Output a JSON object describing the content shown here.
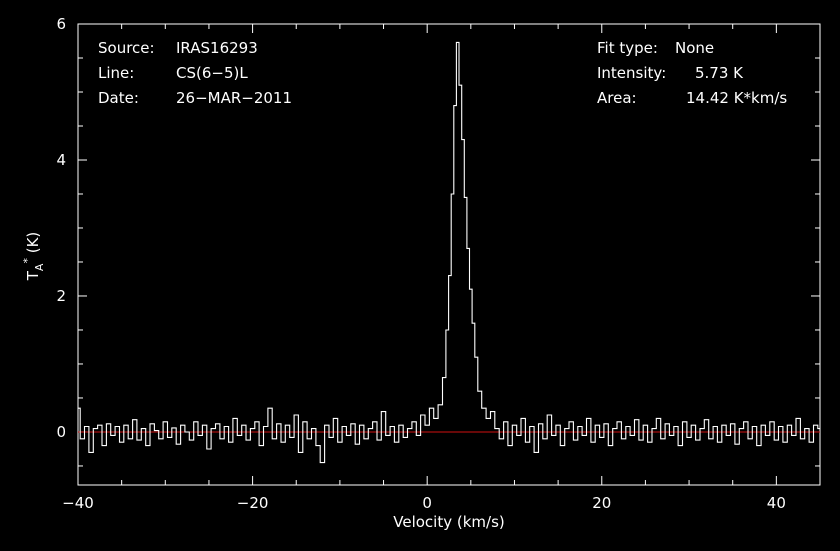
{
  "info": {
    "source_label": "Source:",
    "source_value": "IRAS16293",
    "line_label": "Line:",
    "line_value": "CS(6−5)L",
    "date_label": "Date:",
    "date_value": "26−MAR−2011",
    "fit_label": "Fit type:",
    "fit_value": "None",
    "intensity_label": "Intensity:",
    "intensity_value": "5.73 K",
    "area_label": "Area:",
    "area_value": "14.42 K*km/s"
  },
  "colors": {
    "background": "#000000",
    "foreground": "#ffffff",
    "baseline": "#d01010"
  },
  "chart_data": {
    "type": "line",
    "title": "",
    "xlabel": "Velocity (km/s)",
    "ylabel_main": "T",
    "ylabel_sub": "A",
    "ylabel_sup": "*",
    "ylabel_unit": " (K)",
    "xlim": [
      -40,
      45
    ],
    "ylim": [
      -0.78,
      6.0
    ],
    "xticks": [
      -40,
      -20,
      0,
      20,
      40
    ],
    "xtick_labels": [
      "−40",
      "−20",
      "0",
      "20",
      "40"
    ],
    "yticks": [
      0,
      2,
      4,
      6
    ],
    "ytick_labels": [
      "0",
      "2",
      "4",
      "6"
    ],
    "baseline": 0,
    "grid": false,
    "legend": "none",
    "series": [
      {
        "points": [
          [
            -40.0,
            0.35
          ],
          [
            -39.5,
            -0.1
          ],
          [
            -39.0,
            0.08
          ],
          [
            -38.5,
            -0.3
          ],
          [
            -38.0,
            0.05
          ],
          [
            -37.5,
            0.1
          ],
          [
            -37.0,
            -0.2
          ],
          [
            -36.5,
            0.12
          ],
          [
            -36.0,
            -0.05
          ],
          [
            -35.5,
            0.08
          ],
          [
            -35.0,
            -0.15
          ],
          [
            -34.5,
            0.1
          ],
          [
            -34.0,
            -0.1
          ],
          [
            -33.5,
            0.18
          ],
          [
            -33.0,
            -0.12
          ],
          [
            -32.5,
            0.05
          ],
          [
            -32.0,
            -0.2
          ],
          [
            -31.5,
            0.12
          ],
          [
            -31.0,
            0.02
          ],
          [
            -30.5,
            -0.1
          ],
          [
            -30.0,
            0.15
          ],
          [
            -29.5,
            -0.08
          ],
          [
            -29.0,
            0.06
          ],
          [
            -28.5,
            -0.18
          ],
          [
            -28.0,
            0.1
          ],
          [
            -27.5,
            0.0
          ],
          [
            -27.0,
            -0.12
          ],
          [
            -26.5,
            0.15
          ],
          [
            -26.0,
            -0.05
          ],
          [
            -25.5,
            0.1
          ],
          [
            -25.0,
            -0.25
          ],
          [
            -24.5,
            0.05
          ],
          [
            -24.0,
            0.12
          ],
          [
            -23.5,
            -0.1
          ],
          [
            -23.0,
            0.08
          ],
          [
            -22.5,
            -0.15
          ],
          [
            -22.0,
            0.2
          ],
          [
            -21.5,
            -0.05
          ],
          [
            -21.0,
            0.1
          ],
          [
            -20.5,
            -0.12
          ],
          [
            -20.0,
            0.05
          ],
          [
            -19.5,
            0.15
          ],
          [
            -19.0,
            -0.2
          ],
          [
            -18.5,
            0.08
          ],
          [
            -18.0,
            0.35
          ],
          [
            -17.5,
            -0.1
          ],
          [
            -17.0,
            0.12
          ],
          [
            -16.5,
            -0.15
          ],
          [
            -16.0,
            0.1
          ],
          [
            -15.5,
            -0.08
          ],
          [
            -15.0,
            0.25
          ],
          [
            -14.5,
            -0.3
          ],
          [
            -14.0,
            0.15
          ],
          [
            -13.5,
            -0.1
          ],
          [
            -13.0,
            0.05
          ],
          [
            -12.5,
            -0.2
          ],
          [
            -12.0,
            -0.45
          ],
          [
            -11.5,
            0.1
          ],
          [
            -11.0,
            -0.08
          ],
          [
            -10.5,
            0.2
          ],
          [
            -10.0,
            -0.15
          ],
          [
            -9.5,
            0.08
          ],
          [
            -9.0,
            -0.05
          ],
          [
            -8.5,
            0.12
          ],
          [
            -8.0,
            -0.18
          ],
          [
            -7.5,
            0.1
          ],
          [
            -7.0,
            -0.1
          ],
          [
            -6.5,
            0.05
          ],
          [
            -6.0,
            0.15
          ],
          [
            -5.5,
            -0.12
          ],
          [
            -5.0,
            0.3
          ],
          [
            -4.5,
            -0.05
          ],
          [
            -4.0,
            0.08
          ],
          [
            -3.5,
            -0.15
          ],
          [
            -3.0,
            0.1
          ],
          [
            -2.5,
            -0.08
          ],
          [
            -2.0,
            0.05
          ],
          [
            -1.5,
            0.15
          ],
          [
            -1.0,
            -0.05
          ],
          [
            -0.5,
            0.25
          ],
          [
            0.0,
            0.1
          ],
          [
            0.5,
            0.35
          ],
          [
            1.0,
            0.2
          ],
          [
            1.5,
            0.4
          ],
          [
            2.0,
            0.8
          ],
          [
            2.3,
            1.5
          ],
          [
            2.6,
            2.3
          ],
          [
            2.9,
            3.5
          ],
          [
            3.2,
            4.8
          ],
          [
            3.5,
            5.73
          ],
          [
            3.8,
            5.1
          ],
          [
            4.1,
            4.3
          ],
          [
            4.4,
            3.45
          ],
          [
            4.7,
            2.7
          ],
          [
            5.0,
            2.1
          ],
          [
            5.3,
            1.6
          ],
          [
            5.6,
            1.1
          ],
          [
            6.0,
            0.6
          ],
          [
            6.5,
            0.35
          ],
          [
            7.0,
            0.2
          ],
          [
            7.5,
            0.3
          ],
          [
            8.0,
            0.05
          ],
          [
            8.5,
            -0.1
          ],
          [
            9.0,
            0.15
          ],
          [
            9.5,
            -0.2
          ],
          [
            10.0,
            0.1
          ],
          [
            10.5,
            -0.05
          ],
          [
            11.0,
            0.2
          ],
          [
            11.5,
            -0.15
          ],
          [
            12.0,
            0.08
          ],
          [
            12.5,
            -0.3
          ],
          [
            13.0,
            0.12
          ],
          [
            13.5,
            -0.1
          ],
          [
            14.0,
            0.25
          ],
          [
            14.5,
            -0.05
          ],
          [
            15.0,
            0.1
          ],
          [
            15.5,
            -0.2
          ],
          [
            16.0,
            0.05
          ],
          [
            16.5,
            0.15
          ],
          [
            17.0,
            -0.12
          ],
          [
            17.5,
            0.08
          ],
          [
            18.0,
            -0.05
          ],
          [
            18.5,
            0.2
          ],
          [
            19.0,
            -0.15
          ],
          [
            19.5,
            0.1
          ],
          [
            20.0,
            -0.08
          ],
          [
            20.5,
            0.12
          ],
          [
            21.0,
            -0.2
          ],
          [
            21.5,
            0.05
          ],
          [
            22.0,
            0.15
          ],
          [
            22.5,
            -0.1
          ],
          [
            23.0,
            0.08
          ],
          [
            23.5,
            -0.05
          ],
          [
            24.0,
            0.18
          ],
          [
            24.5,
            -0.12
          ],
          [
            25.0,
            0.1
          ],
          [
            25.5,
            -0.15
          ],
          [
            26.0,
            0.05
          ],
          [
            26.5,
            0.2
          ],
          [
            27.0,
            -0.1
          ],
          [
            27.5,
            0.12
          ],
          [
            28.0,
            -0.05
          ],
          [
            28.5,
            0.08
          ],
          [
            29.0,
            -0.2
          ],
          [
            29.5,
            0.15
          ],
          [
            30.0,
            -0.08
          ],
          [
            30.5,
            0.1
          ],
          [
            31.0,
            -0.12
          ],
          [
            31.5,
            0.05
          ],
          [
            32.0,
            0.18
          ],
          [
            32.5,
            -0.1
          ],
          [
            33.0,
            0.08
          ],
          [
            33.5,
            -0.15
          ],
          [
            34.0,
            0.1
          ],
          [
            34.5,
            -0.05
          ],
          [
            35.0,
            0.12
          ],
          [
            35.5,
            -0.18
          ],
          [
            36.0,
            0.05
          ],
          [
            36.5,
            0.15
          ],
          [
            37.0,
            -0.1
          ],
          [
            37.5,
            0.08
          ],
          [
            38.0,
            -0.2
          ],
          [
            38.5,
            0.1
          ],
          [
            39.0,
            -0.05
          ],
          [
            39.5,
            0.15
          ],
          [
            40.0,
            -0.12
          ],
          [
            40.5,
            0.08
          ],
          [
            41.0,
            -0.15
          ],
          [
            41.5,
            0.1
          ],
          [
            42.0,
            -0.05
          ],
          [
            42.5,
            0.2
          ],
          [
            43.0,
            -0.1
          ],
          [
            43.5,
            0.05
          ],
          [
            44.0,
            -0.15
          ],
          [
            44.5,
            0.1
          ],
          [
            45.0,
            0.05
          ]
        ]
      }
    ]
  }
}
